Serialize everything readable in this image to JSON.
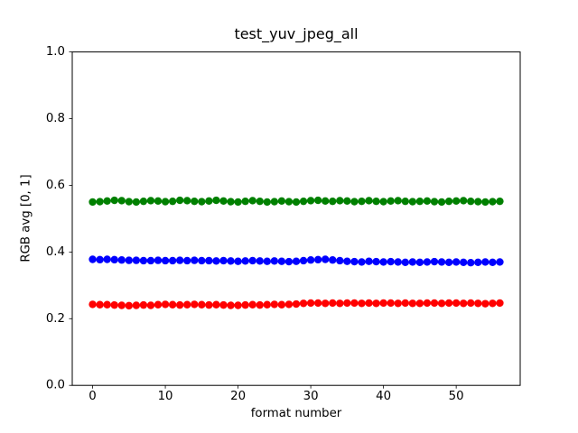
{
  "chart_data": {
    "type": "scatter",
    "title": "test_yuv_jpeg_all",
    "xlabel": "format number",
    "ylabel": "RGB avg [0, 1]",
    "xlim": [
      -2.8,
      58.8
    ],
    "ylim": [
      0.0,
      1.0
    ],
    "xticks": [
      0,
      10,
      20,
      30,
      40,
      50
    ],
    "yticks": [
      0.0,
      0.2,
      0.4,
      0.6,
      0.8,
      1.0
    ],
    "grid": false,
    "legend": "none",
    "marker": {
      "shape": "circle",
      "radius_px": 4.2
    },
    "x": [
      0,
      1,
      2,
      3,
      4,
      5,
      6,
      7,
      8,
      9,
      10,
      11,
      12,
      13,
      14,
      15,
      16,
      17,
      18,
      19,
      20,
      21,
      22,
      23,
      24,
      25,
      26,
      27,
      28,
      29,
      30,
      31,
      32,
      33,
      34,
      35,
      36,
      37,
      38,
      39,
      40,
      41,
      42,
      43,
      44,
      45,
      46,
      47,
      48,
      49,
      50,
      51,
      52,
      53,
      54,
      55,
      56
    ],
    "series": [
      {
        "name": "green",
        "color": "#008000",
        "values": [
          0.55,
          0.551,
          0.553,
          0.555,
          0.554,
          0.551,
          0.55,
          0.552,
          0.554,
          0.553,
          0.551,
          0.552,
          0.555,
          0.554,
          0.552,
          0.551,
          0.553,
          0.555,
          0.553,
          0.551,
          0.55,
          0.552,
          0.554,
          0.552,
          0.55,
          0.551,
          0.553,
          0.551,
          0.55,
          0.552,
          0.554,
          0.555,
          0.553,
          0.552,
          0.554,
          0.553,
          0.551,
          0.552,
          0.554,
          0.552,
          0.551,
          0.553,
          0.554,
          0.552,
          0.551,
          0.552,
          0.553,
          0.551,
          0.55,
          0.552,
          0.553,
          0.554,
          0.552,
          0.551,
          0.55,
          0.551,
          0.552
        ]
      },
      {
        "name": "blue",
        "color": "#0000ff",
        "values": [
          0.378,
          0.377,
          0.378,
          0.377,
          0.376,
          0.375,
          0.375,
          0.374,
          0.374,
          0.375,
          0.374,
          0.374,
          0.375,
          0.374,
          0.375,
          0.374,
          0.374,
          0.373,
          0.374,
          0.373,
          0.372,
          0.373,
          0.374,
          0.373,
          0.372,
          0.373,
          0.372,
          0.371,
          0.372,
          0.374,
          0.376,
          0.377,
          0.378,
          0.376,
          0.374,
          0.372,
          0.371,
          0.37,
          0.372,
          0.371,
          0.37,
          0.371,
          0.37,
          0.369,
          0.37,
          0.369,
          0.37,
          0.371,
          0.37,
          0.369,
          0.37,
          0.369,
          0.368,
          0.369,
          0.37,
          0.369,
          0.37
        ]
      },
      {
        "name": "red",
        "color": "#ff0000",
        "values": [
          0.243,
          0.242,
          0.242,
          0.241,
          0.24,
          0.239,
          0.24,
          0.241,
          0.24,
          0.242,
          0.243,
          0.242,
          0.241,
          0.242,
          0.243,
          0.242,
          0.241,
          0.242,
          0.241,
          0.24,
          0.24,
          0.241,
          0.242,
          0.241,
          0.242,
          0.243,
          0.242,
          0.243,
          0.244,
          0.246,
          0.247,
          0.247,
          0.246,
          0.247,
          0.246,
          0.247,
          0.247,
          0.246,
          0.247,
          0.246,
          0.247,
          0.247,
          0.246,
          0.247,
          0.246,
          0.246,
          0.247,
          0.247,
          0.246,
          0.247,
          0.247,
          0.246,
          0.247,
          0.246,
          0.245,
          0.246,
          0.247
        ]
      }
    ]
  }
}
